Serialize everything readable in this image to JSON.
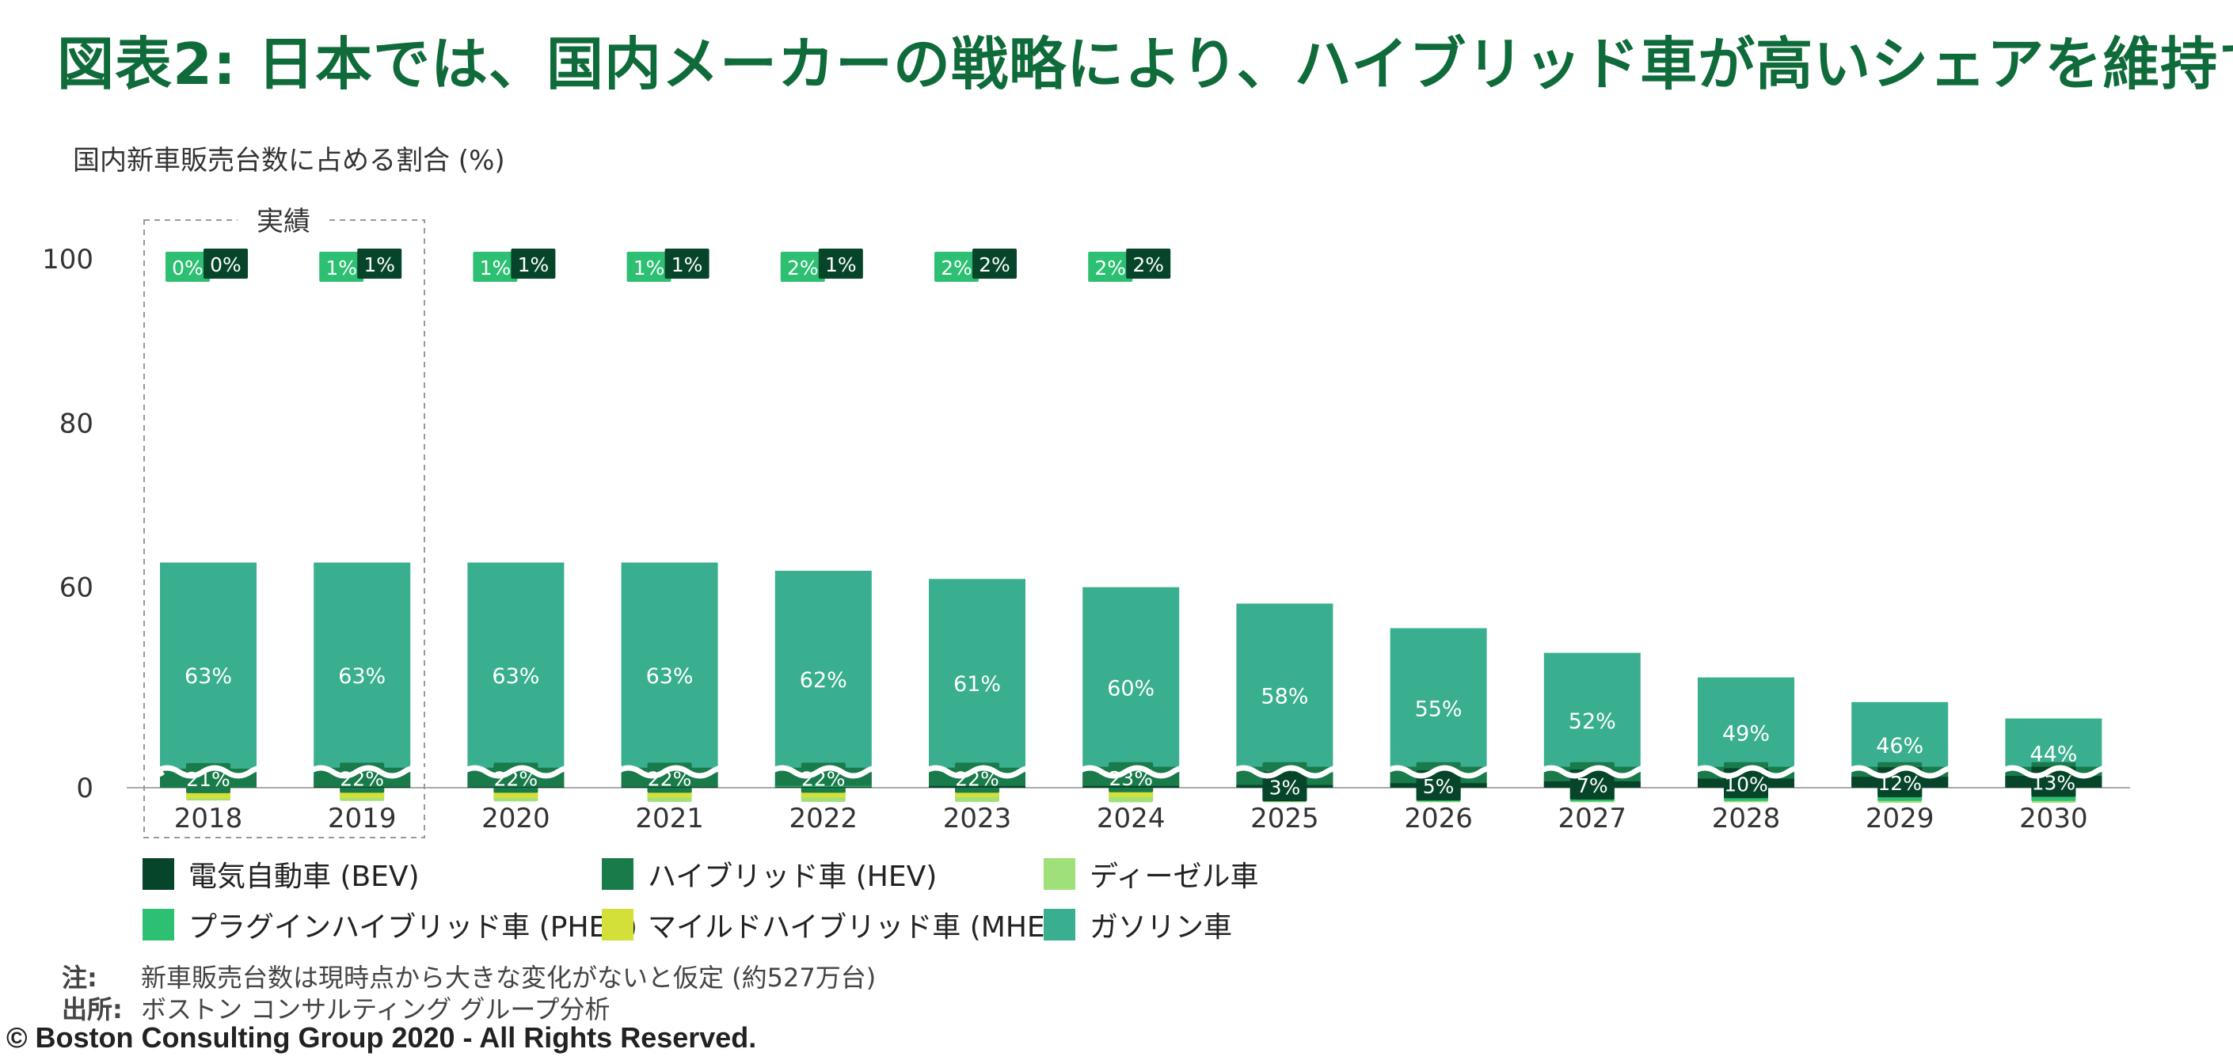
{
  "title": "図表2: 日本では、国内メーカーの戦略により、ハイブリッド車が高いシェアを維持する",
  "chart_data": {
    "type": "bar",
    "stacked": true,
    "ylabel": "国内新車販売台数に占める割合 (%)",
    "ylim": [
      0,
      100
    ],
    "y_ticks": [
      "100",
      "80",
      "60",
      "0"
    ],
    "axis_break": true,
    "actual_label": "実績",
    "actual_years": [
      "2018",
      "2019"
    ],
    "categories": [
      "2018",
      "2019",
      "2020",
      "2021",
      "2022",
      "2023",
      "2024",
      "2025",
      "2026",
      "2027",
      "2028",
      "2029",
      "2030"
    ],
    "series": [
      {
        "name": "ガソリン車",
        "color": "#3aaf8f",
        "values": [
          63,
          63,
          63,
          63,
          62,
          61,
          60,
          58,
          55,
          52,
          49,
          46,
          44
        ]
      },
      {
        "name": "ディーゼル車",
        "color": "#9fe07a",
        "values": [
          5,
          4,
          3,
          2,
          2,
          2,
          1,
          1,
          1,
          1,
          1,
          0,
          0
        ]
      },
      {
        "name": "マイルドハイブリッド車 (MHEV)",
        "color": "#d4e03a",
        "values": [
          9,
          10,
          10,
          11,
          11,
          12,
          12,
          13,
          13,
          14,
          14,
          14,
          15
        ]
      },
      {
        "name": "ハイブリッド車 (HEV)",
        "color": "#197a4a",
        "values": [
          21,
          22,
          22,
          22,
          22,
          22,
          23,
          23,
          23,
          23,
          23,
          23,
          23
        ]
      },
      {
        "name": "プラグインハイブリッド車 (PHEV)",
        "color": "#2dbf72",
        "values": [
          0,
          1,
          1,
          1,
          2,
          2,
          2,
          3,
          3,
          3,
          4,
          4,
          4
        ]
      },
      {
        "name": "電気自動車 (BEV)",
        "color": "#06452a",
        "values": [
          0,
          1,
          1,
          1,
          1,
          2,
          2,
          3,
          5,
          7,
          10,
          12,
          13
        ]
      }
    ],
    "legend": [
      {
        "label": "電気自動車 (BEV)",
        "color": "#06452a"
      },
      {
        "label": "ハイブリッド車 (HEV)",
        "color": "#197a4a"
      },
      {
        "label": "ディーゼル車",
        "color": "#9fe07a"
      },
      {
        "label": "プラグインハイブリッド車 (PHEV)",
        "color": "#2dbf72"
      },
      {
        "label": "マイルドハイブリッド車 (MHEV)",
        "color": "#d4e03a"
      },
      {
        "label": "ガソリン車",
        "color": "#3aaf8f"
      }
    ]
  },
  "notes": {
    "note_label": "注:",
    "note_text": "新車販売台数は現時点から大きな変化がないと仮定 (約527万台)",
    "source_label": "出所:",
    "source_text": "ボストン コンサルティング グループ分析"
  },
  "copyright": "© Boston Consulting Group 2020 - All Rights Reserved."
}
